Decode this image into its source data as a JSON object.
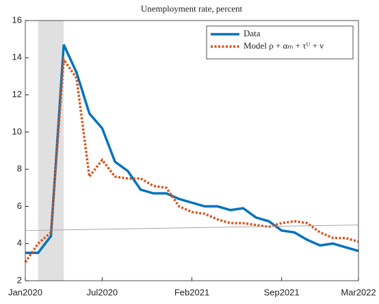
{
  "chart_data": {
    "type": "line",
    "title": "Unemployment rate, percent",
    "x": [
      "Jan2020",
      "Feb2020",
      "Mar2020",
      "Apr2020",
      "May2020",
      "Jun2020",
      "Jul2020",
      "Aug2020",
      "Sep2020",
      "Oct2020",
      "Nov2020",
      "Dec2020",
      "Jan2021",
      "Feb2021",
      "Mar2021",
      "Apr2021",
      "May2021",
      "Jun2021",
      "Jul2021",
      "Aug2021",
      "Sep2021",
      "Oct2021",
      "Nov2021",
      "Dec2021",
      "Jan2022",
      "Feb2022",
      "Mar2022"
    ],
    "series": [
      {
        "name": "Data",
        "color": "#0072bd",
        "style": "solid",
        "values": [
          3.5,
          3.5,
          4.4,
          14.7,
          13.2,
          11.0,
          10.2,
          8.4,
          7.9,
          6.9,
          6.7,
          6.7,
          6.4,
          6.2,
          6.0,
          6.0,
          5.8,
          5.9,
          5.4,
          5.2,
          4.7,
          4.6,
          4.2,
          3.9,
          4.0,
          3.8,
          3.6
        ]
      },
      {
        "name": "Model ρ + αₘ + τᵁ + ν",
        "color": "#d95319",
        "style": "dotted",
        "values": [
          3.0,
          4.0,
          4.6,
          13.9,
          12.9,
          7.6,
          8.5,
          7.6,
          7.5,
          7.5,
          7.1,
          7.0,
          6.0,
          5.7,
          5.6,
          5.3,
          5.1,
          5.1,
          5.0,
          4.9,
          5.1,
          5.2,
          5.1,
          4.6,
          4.3,
          4.3,
          4.1
        ]
      },
      {
        "color": "#999999",
        "style": "thin",
        "values": [
          4.7,
          null,
          null,
          null,
          null,
          null,
          null,
          null,
          null,
          null,
          null,
          null,
          null,
          null,
          null,
          null,
          null,
          null,
          null,
          null,
          null,
          null,
          null,
          null,
          null,
          null,
          5.0
        ]
      }
    ],
    "shade": [
      "Feb2020",
      "Apr2020"
    ],
    "xlim": [
      "Jan2020",
      "Mar2022"
    ],
    "xticks": [
      "Jan2020",
      "Jul2020",
      "Feb2021",
      "Sep2021",
      "Mar2022"
    ],
    "ylim": [
      2,
      16
    ],
    "yticks": [
      2,
      4,
      6,
      8,
      10,
      12,
      14,
      16
    ],
    "legend": "upper right"
  }
}
